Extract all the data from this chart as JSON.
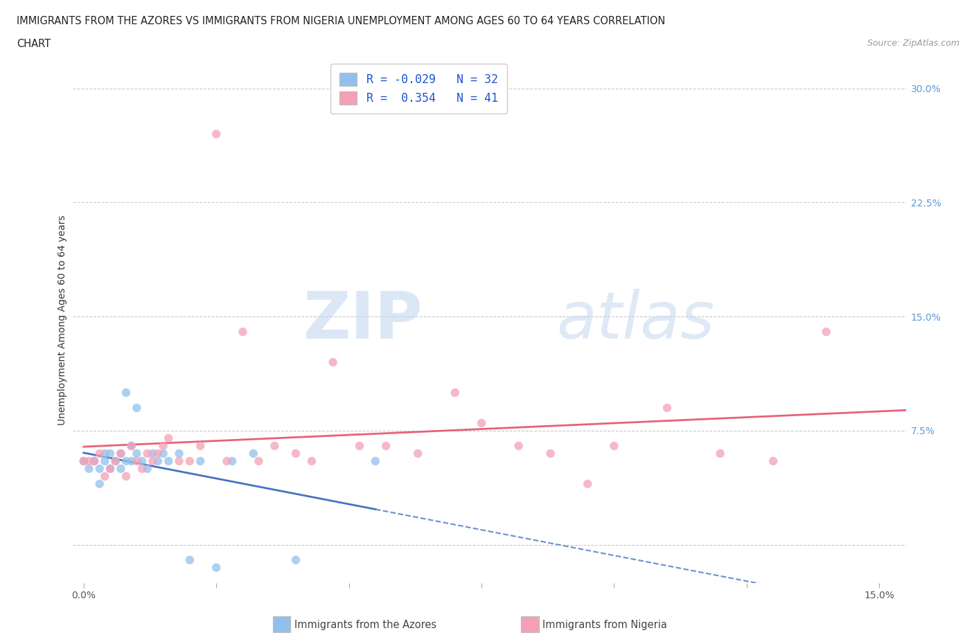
{
  "title_line1": "IMMIGRANTS FROM THE AZORES VS IMMIGRANTS FROM NIGERIA UNEMPLOYMENT AMONG AGES 60 TO 64 YEARS CORRELATION",
  "title_line2": "CHART",
  "source_text": "Source: ZipAtlas.com",
  "ylabel": "Unemployment Among Ages 60 to 64 years",
  "xlim": [
    -0.002,
    0.155
  ],
  "ylim": [
    -0.025,
    0.32
  ],
  "ytick_positions": [
    0.0,
    0.075,
    0.15,
    0.225,
    0.3
  ],
  "yticklabels_right": [
    "",
    "7.5%",
    "15.0%",
    "22.5%",
    "30.0%"
  ],
  "watermark_zip": "ZIP",
  "watermark_atlas": "atlas",
  "azores_color": "#92c0ed",
  "nigeria_color": "#f4a0b5",
  "azores_line_color": "#4472c4",
  "nigeria_line_color": "#e8607a",
  "R_azores": -0.029,
  "N_azores": 32,
  "R_nigeria": 0.354,
  "N_nigeria": 41,
  "legend_text_color": "#2255cc",
  "azores_x": [
    0.0,
    0.001,
    0.002,
    0.003,
    0.003,
    0.004,
    0.004,
    0.005,
    0.005,
    0.006,
    0.007,
    0.007,
    0.008,
    0.008,
    0.009,
    0.009,
    0.01,
    0.01,
    0.011,
    0.012,
    0.013,
    0.014,
    0.015,
    0.016,
    0.018,
    0.02,
    0.022,
    0.025,
    0.028,
    0.032,
    0.04,
    0.055
  ],
  "azores_y": [
    0.055,
    0.05,
    0.055,
    0.04,
    0.05,
    0.055,
    0.06,
    0.05,
    0.06,
    0.055,
    0.05,
    0.06,
    0.055,
    0.1,
    0.055,
    0.065,
    0.06,
    0.09,
    0.055,
    0.05,
    0.06,
    0.055,
    0.06,
    0.055,
    0.06,
    -0.01,
    0.055,
    -0.015,
    0.055,
    0.06,
    -0.01,
    0.055
  ],
  "nigeria_x": [
    0.0,
    0.001,
    0.002,
    0.003,
    0.004,
    0.005,
    0.006,
    0.007,
    0.008,
    0.009,
    0.01,
    0.011,
    0.012,
    0.013,
    0.014,
    0.015,
    0.016,
    0.018,
    0.02,
    0.022,
    0.025,
    0.027,
    0.03,
    0.033,
    0.036,
    0.04,
    0.043,
    0.047,
    0.052,
    0.057,
    0.063,
    0.07,
    0.075,
    0.082,
    0.088,
    0.095,
    0.1,
    0.11,
    0.12,
    0.13,
    0.14
  ],
  "nigeria_y": [
    0.055,
    0.055,
    0.055,
    0.06,
    0.045,
    0.05,
    0.055,
    0.06,
    0.045,
    0.065,
    0.055,
    0.05,
    0.06,
    0.055,
    0.06,
    0.065,
    0.07,
    0.055,
    0.055,
    0.065,
    0.27,
    0.055,
    0.14,
    0.055,
    0.065,
    0.06,
    0.055,
    0.12,
    0.065,
    0.065,
    0.06,
    0.1,
    0.08,
    0.065,
    0.06,
    0.04,
    0.065,
    0.09,
    0.06,
    0.055,
    0.14
  ],
  "background_color": "#ffffff",
  "plot_bg_color": "#ffffff",
  "grid_color": "#c8c8c8"
}
